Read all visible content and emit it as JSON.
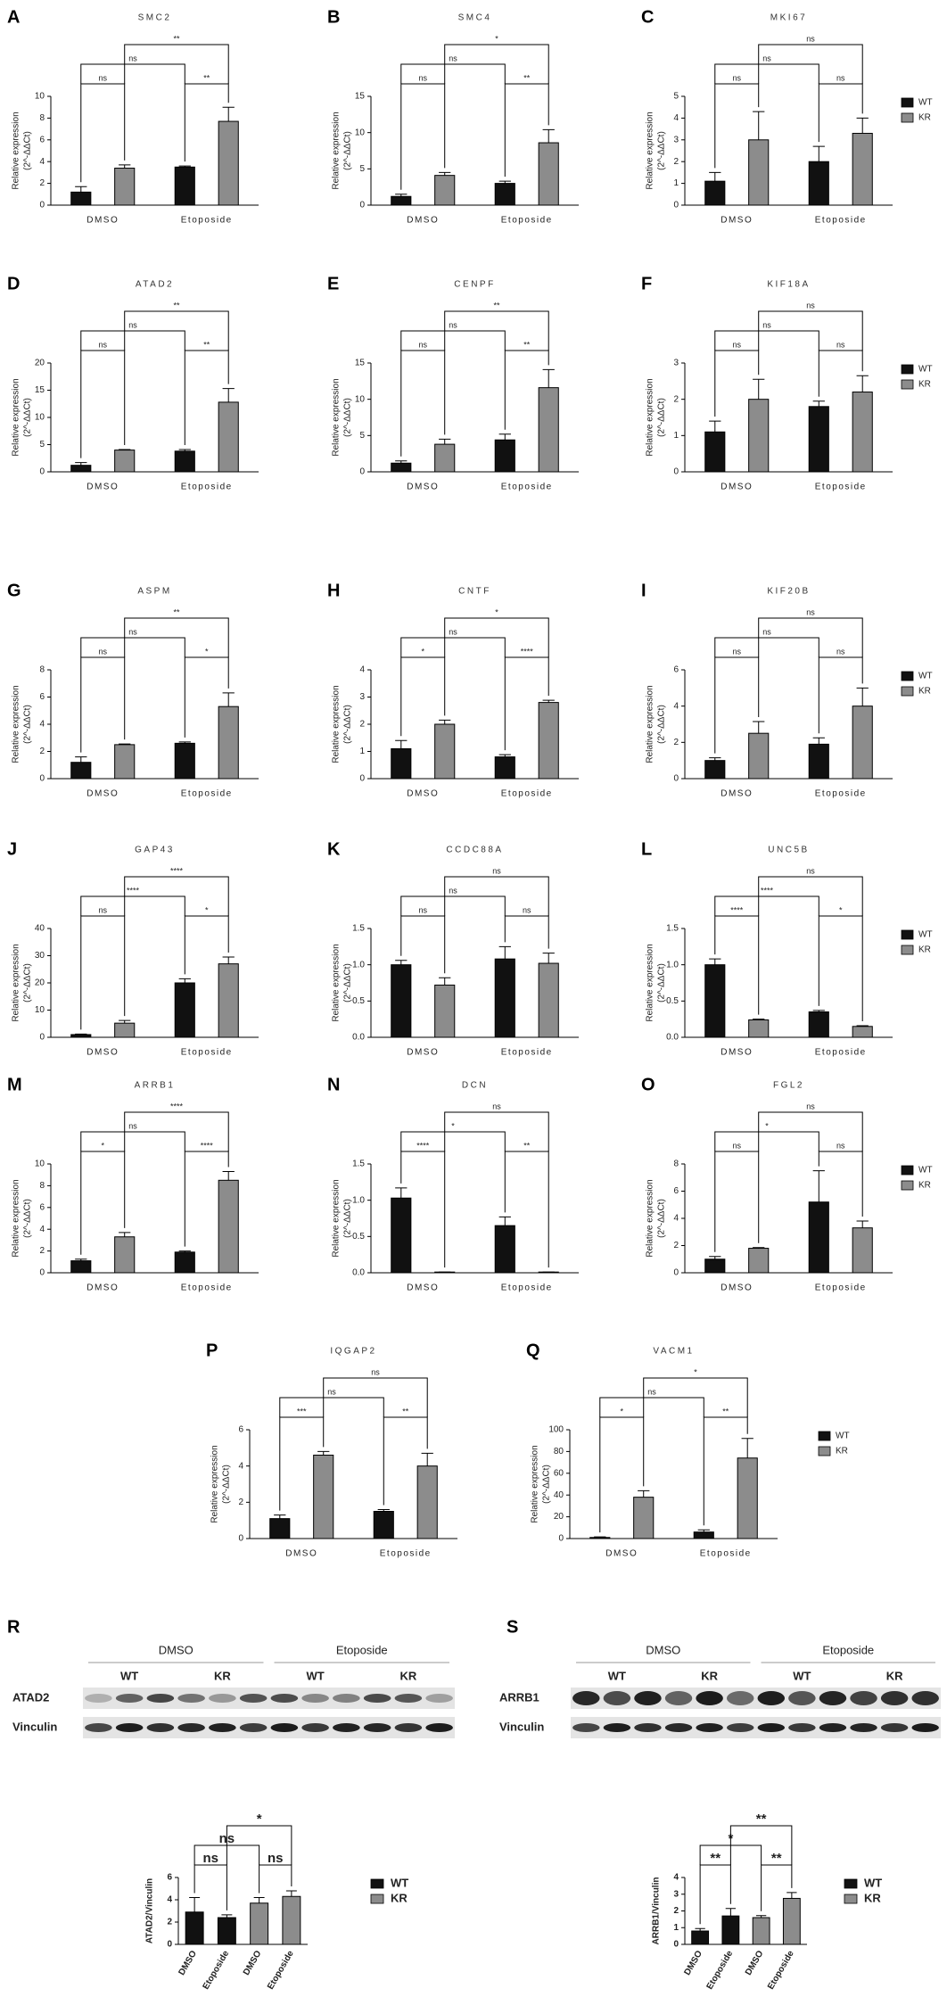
{
  "chart_data": [
    {
      "panel": "A",
      "type": "bar",
      "title": "SMC2",
      "ylabel": "Relative expression",
      "ylabel_unit": "(2^-ΔΔCt)",
      "categories": [
        "DMSO",
        "Etoposide"
      ],
      "series": [
        {
          "name": "WT",
          "color": "#111111",
          "values": [
            1.2,
            3.5
          ],
          "errors": [
            0.5,
            0.1
          ]
        },
        {
          "name": "KR",
          "color": "#8c8c8c",
          "values": [
            3.4,
            7.7
          ],
          "errors": [
            0.3,
            1.3
          ]
        }
      ],
      "ylim": [
        0,
        10
      ],
      "yticks": [
        0,
        2,
        4,
        6,
        8,
        10
      ],
      "significance": [
        "ns",
        "**",
        "ns",
        "**"
      ]
    },
    {
      "panel": "B",
      "type": "bar",
      "title": "SMC4",
      "ylabel": "Relative expression",
      "ylabel_unit": "(2^-ΔΔCt)",
      "categories": [
        "DMSO",
        "Etoposide"
      ],
      "series": [
        {
          "name": "WT",
          "color": "#111111",
          "values": [
            1.2,
            3.0
          ],
          "errors": [
            0.3,
            0.3
          ]
        },
        {
          "name": "KR",
          "color": "#8c8c8c",
          "values": [
            4.1,
            8.6
          ],
          "errors": [
            0.4,
            1.8
          ]
        }
      ],
      "ylim": [
        0,
        15
      ],
      "yticks": [
        0,
        5,
        10,
        15
      ],
      "significance": [
        "ns",
        "**",
        "ns",
        "*"
      ]
    },
    {
      "panel": "C",
      "type": "bar",
      "title": "MKI67",
      "ylabel": "Relative expression",
      "ylabel_unit": "(2^-ΔΔCt)",
      "categories": [
        "DMSO",
        "Etoposide"
      ],
      "series": [
        {
          "name": "WT",
          "color": "#111111",
          "values": [
            1.1,
            2.0
          ],
          "errors": [
            0.4,
            0.7
          ]
        },
        {
          "name": "KR",
          "color": "#8c8c8c",
          "values": [
            3.0,
            3.3
          ],
          "errors": [
            1.3,
            0.7
          ]
        }
      ],
      "ylim": [
        0,
        5
      ],
      "yticks": [
        0,
        1,
        2,
        3,
        4,
        5
      ],
      "significance": [
        "ns",
        "ns",
        "ns",
        "ns"
      ],
      "legend": "right"
    },
    {
      "panel": "D",
      "type": "bar",
      "title": "ATAD2",
      "ylabel": "Relative expression",
      "ylabel_unit": "(2^-ΔΔCt)",
      "categories": [
        "DMSO",
        "Etoposide"
      ],
      "series": [
        {
          "name": "WT",
          "color": "#111111",
          "values": [
            1.2,
            3.8
          ],
          "errors": [
            0.5,
            0.3
          ]
        },
        {
          "name": "KR",
          "color": "#8c8c8c",
          "values": [
            4.0,
            12.8
          ],
          "errors": [
            0.1,
            2.5
          ]
        }
      ],
      "ylim": [
        0,
        20
      ],
      "yticks": [
        0,
        5,
        10,
        15,
        20
      ],
      "significance": [
        "ns",
        "**",
        "ns",
        "**"
      ]
    },
    {
      "panel": "E",
      "type": "bar",
      "title": "CENPF",
      "ylabel": "Relative expression",
      "ylabel_unit": "(2^-ΔΔCt)",
      "categories": [
        "DMSO",
        "Etoposide"
      ],
      "series": [
        {
          "name": "WT",
          "color": "#111111",
          "values": [
            1.2,
            4.4
          ],
          "errors": [
            0.3,
            0.8
          ]
        },
        {
          "name": "KR",
          "color": "#8c8c8c",
          "values": [
            3.8,
            11.6
          ],
          "errors": [
            0.7,
            2.5
          ]
        }
      ],
      "ylim": [
        0,
        15
      ],
      "yticks": [
        0,
        5,
        10,
        15
      ],
      "significance": [
        "ns",
        "**",
        "ns",
        "**"
      ]
    },
    {
      "panel": "F",
      "type": "bar",
      "title": "KIF18A",
      "ylabel": "Relative expression",
      "ylabel_unit": "(2^-ΔΔCt)",
      "categories": [
        "DMSO",
        "Etoposide"
      ],
      "series": [
        {
          "name": "WT",
          "color": "#111111",
          "values": [
            1.1,
            1.8
          ],
          "errors": [
            0.3,
            0.15
          ]
        },
        {
          "name": "KR",
          "color": "#8c8c8c",
          "values": [
            2.0,
            2.2
          ],
          "errors": [
            0.55,
            0.45
          ]
        }
      ],
      "ylim": [
        0,
        3
      ],
      "yticks": [
        0,
        1,
        2,
        3
      ],
      "significance": [
        "ns",
        "ns",
        "ns",
        "ns"
      ],
      "legend": "right"
    },
    {
      "panel": "G",
      "type": "bar",
      "title": "ASPM",
      "ylabel": "Relative expression",
      "ylabel_unit": "(2^-ΔΔCt)",
      "categories": [
        "DMSO",
        "Etoposide"
      ],
      "series": [
        {
          "name": "WT",
          "color": "#111111",
          "values": [
            1.2,
            2.6
          ],
          "errors": [
            0.4,
            0.1
          ]
        },
        {
          "name": "KR",
          "color": "#8c8c8c",
          "values": [
            2.5,
            5.3
          ],
          "errors": [
            0.05,
            1.0
          ]
        }
      ],
      "ylim": [
        0,
        8
      ],
      "yticks": [
        0,
        2,
        4,
        6,
        8
      ],
      "significance": [
        "ns",
        "*",
        "ns",
        "**"
      ]
    },
    {
      "panel": "H",
      "type": "bar",
      "title": "CNTF",
      "ylabel": "Relative expression",
      "ylabel_unit": "(2^-ΔΔCt)",
      "categories": [
        "DMSO",
        "Etoposide"
      ],
      "series": [
        {
          "name": "WT",
          "color": "#111111",
          "values": [
            1.1,
            0.8
          ],
          "errors": [
            0.3,
            0.08
          ]
        },
        {
          "name": "KR",
          "color": "#8c8c8c",
          "values": [
            2.0,
            2.8
          ],
          "errors": [
            0.15,
            0.08
          ]
        }
      ],
      "ylim": [
        0,
        4
      ],
      "yticks": [
        0,
        1,
        2,
        3,
        4
      ],
      "significance": [
        "*",
        "****",
        "ns",
        "*"
      ]
    },
    {
      "panel": "I",
      "type": "bar",
      "title": "KIF20B",
      "ylabel": "Relative expression",
      "ylabel_unit": "(2^-ΔΔCt)",
      "categories": [
        "DMSO",
        "Etoposide"
      ],
      "series": [
        {
          "name": "WT",
          "color": "#111111",
          "values": [
            1.0,
            1.9
          ],
          "errors": [
            0.15,
            0.35
          ]
        },
        {
          "name": "KR",
          "color": "#8c8c8c",
          "values": [
            2.5,
            4.0
          ],
          "errors": [
            0.65,
            1.0
          ]
        }
      ],
      "ylim": [
        0,
        6
      ],
      "yticks": [
        0,
        2,
        4,
        6
      ],
      "significance": [
        "ns",
        "ns",
        "ns",
        "ns"
      ],
      "legend": "right"
    },
    {
      "panel": "J",
      "type": "bar",
      "title": "GAP43",
      "ylabel": "Relative expression",
      "ylabel_unit": "(2^-ΔΔCt)",
      "categories": [
        "DMSO",
        "Etoposide"
      ],
      "series": [
        {
          "name": "WT",
          "color": "#111111",
          "values": [
            1.0,
            20
          ],
          "errors": [
            0.2,
            1.5
          ]
        },
        {
          "name": "KR",
          "color": "#8c8c8c",
          "values": [
            5.2,
            27
          ],
          "errors": [
            1,
            2.5
          ]
        }
      ],
      "ylim": [
        0,
        40
      ],
      "yticks": [
        0,
        10,
        20,
        30,
        40
      ],
      "significance": [
        "ns",
        "*",
        "****",
        "****"
      ]
    },
    {
      "panel": "K",
      "type": "bar",
      "title": "CCDC88A",
      "ylabel": "Relative expression",
      "ylabel_unit": "(2^-ΔΔCt)",
      "categories": [
        "DMSO",
        "Etoposide"
      ],
      "series": [
        {
          "name": "WT",
          "color": "#111111",
          "values": [
            1.0,
            1.08
          ],
          "errors": [
            0.06,
            0.17
          ]
        },
        {
          "name": "KR",
          "color": "#8c8c8c",
          "values": [
            0.72,
            1.02
          ],
          "errors": [
            0.1,
            0.14
          ]
        }
      ],
      "ylim": [
        0,
        1.5
      ],
      "yticks": [
        {
          "value": 0,
          "label": "0.0"
        },
        0.5,
        {
          "value": 1,
          "label": "1.0"
        },
        1.5
      ],
      "significance": [
        "ns",
        "ns",
        "ns",
        "ns"
      ]
    },
    {
      "panel": "L",
      "type": "bar",
      "title": "UNC5B",
      "ylabel": "Relative expression",
      "ylabel_unit": "(2^-ΔΔCt)",
      "categories": [
        "DMSO",
        "Etoposide"
      ],
      "series": [
        {
          "name": "WT",
          "color": "#111111",
          "values": [
            1.0,
            0.35
          ],
          "errors": [
            0.08,
            0.02
          ]
        },
        {
          "name": "KR",
          "color": "#8c8c8c",
          "values": [
            0.24,
            0.15
          ],
          "errors": [
            0.01,
            0.01
          ]
        }
      ],
      "ylim": [
        0,
        1.5
      ],
      "yticks": [
        {
          "value": 0,
          "label": "0.0"
        },
        0.5,
        {
          "value": 1,
          "label": "1.0"
        },
        1.5
      ],
      "significance": [
        "****",
        "*",
        "****",
        "ns"
      ],
      "legend": "right"
    },
    {
      "panel": "M",
      "type": "bar",
      "title": "ARRB1",
      "ylabel": "Relative expression",
      "ylabel_unit": "(2^-ΔΔCt)",
      "categories": [
        "DMSO",
        "Etoposide"
      ],
      "series": [
        {
          "name": "WT",
          "color": "#111111",
          "values": [
            1.1,
            1.9
          ],
          "errors": [
            0.15,
            0.1
          ]
        },
        {
          "name": "KR",
          "color": "#8c8c8c",
          "values": [
            3.3,
            8.5
          ],
          "errors": [
            0.4,
            0.8
          ]
        }
      ],
      "ylim": [
        0,
        10
      ],
      "yticks": [
        0,
        2,
        4,
        6,
        8,
        10
      ],
      "significance": [
        "*",
        "****",
        "ns",
        "****"
      ]
    },
    {
      "panel": "N",
      "type": "bar",
      "title": "DCN",
      "ylabel": "Relative expression",
      "ylabel_unit": "(2^-ΔΔCt)",
      "categories": [
        "DMSO",
        "Etoposide"
      ],
      "series": [
        {
          "name": "WT",
          "color": "#111111",
          "values": [
            1.03,
            0.65
          ],
          "errors": [
            0.14,
            0.12
          ]
        },
        {
          "name": "KR",
          "color": "#8c8c8c",
          "values": [
            0.01,
            0.01
          ],
          "errors": [
            0,
            0
          ]
        }
      ],
      "ylim": [
        0,
        1.5
      ],
      "yticks": [
        {
          "value": 0,
          "label": "0.0"
        },
        0.5,
        {
          "value": 1,
          "label": "1.0"
        },
        1.5
      ],
      "significance": [
        "****",
        "**",
        "*",
        "ns"
      ]
    },
    {
      "panel": "O",
      "type": "bar",
      "title": "FGL2",
      "ylabel": "Relative expression",
      "ylabel_unit": "(2^-ΔΔCt)",
      "categories": [
        "DMSO",
        "Etoposide"
      ],
      "series": [
        {
          "name": "WT",
          "color": "#111111",
          "values": [
            1.0,
            5.2
          ],
          "errors": [
            0.2,
            2.3
          ]
        },
        {
          "name": "KR",
          "color": "#8c8c8c",
          "values": [
            1.8,
            3.3
          ],
          "errors": [
            0.05,
            0.5
          ]
        }
      ],
      "ylim": [
        0,
        8
      ],
      "yticks": [
        0,
        2,
        4,
        6,
        8
      ],
      "significance": [
        "ns",
        "ns",
        "*",
        "ns"
      ],
      "legend": "right"
    },
    {
      "panel": "P",
      "type": "bar",
      "title": "IQGAP2",
      "ylabel": "Relative expression",
      "ylabel_unit": "(2^-ΔΔCt)",
      "categories": [
        "DMSO",
        "Etoposide"
      ],
      "series": [
        {
          "name": "WT",
          "color": "#111111",
          "values": [
            1.1,
            1.5
          ],
          "errors": [
            0.2,
            0.1
          ]
        },
        {
          "name": "KR",
          "color": "#8c8c8c",
          "values": [
            4.6,
            4.0
          ],
          "errors": [
            0.2,
            0.7
          ]
        }
      ],
      "ylim": [
        0,
        6
      ],
      "yticks": [
        0,
        2,
        4,
        6
      ],
      "significance": [
        "***",
        "**",
        "ns",
        "ns"
      ]
    },
    {
      "panel": "Q",
      "type": "bar",
      "title": "VACM1",
      "ylabel": "Relative expression",
      "ylabel_unit": "(2^-ΔΔCt)",
      "categories": [
        "DMSO",
        "Etoposide"
      ],
      "series": [
        {
          "name": "WT",
          "color": "#111111",
          "values": [
            1,
            6
          ],
          "errors": [
            0.5,
            2
          ]
        },
        {
          "name": "KR",
          "color": "#8c8c8c",
          "values": [
            38,
            74
          ],
          "errors": [
            6,
            18
          ]
        }
      ],
      "ylim": [
        0,
        100
      ],
      "yticks": [
        0,
        20,
        40,
        60,
        80,
        100
      ],
      "significance": [
        "*",
        "**",
        "ns",
        "*"
      ],
      "legend": "right"
    },
    {
      "panel": "R",
      "type": "bar",
      "ylabel": "ATAD2/Vinculin",
      "categories": [
        "DMSO",
        "Etoposide",
        "DMSO",
        "Etoposide"
      ],
      "series": [
        {
          "name": "WT",
          "color": "#111111",
          "values": [
            2.9,
            2.4,
            null,
            null
          ],
          "errors": [
            1.3,
            0.25,
            null,
            null
          ]
        },
        {
          "name": "KR",
          "color": "#8c8c8c",
          "values": [
            null,
            null,
            3.7,
            4.3
          ],
          "errors": [
            null,
            null,
            0.5,
            0.5
          ]
        }
      ],
      "ylim": [
        0,
        6
      ],
      "yticks": [
        0,
        2,
        4,
        6
      ],
      "significance": [
        "ns",
        "ns",
        "ns",
        "*"
      ],
      "legend": "right"
    },
    {
      "panel": "S",
      "type": "bar",
      "ylabel": "ARRB1/Vinculin",
      "categories": [
        "DMSO",
        "Etoposide",
        "DMSO",
        "Etoposide"
      ],
      "series": [
        {
          "name": "WT",
          "color": "#111111",
          "values": [
            0.8,
            1.7,
            null,
            null
          ],
          "errors": [
            0.15,
            0.45,
            null,
            null
          ]
        },
        {
          "name": "KR",
          "color": "#8c8c8c",
          "values": [
            null,
            null,
            1.6,
            2.75
          ],
          "errors": [
            null,
            null,
            0.12,
            0.35
          ]
        }
      ],
      "ylim": [
        0,
        4
      ],
      "yticks": [
        0,
        1,
        2,
        3,
        4
      ],
      "significance": [
        "**",
        "**",
        "*",
        "**"
      ],
      "legend": "right"
    }
  ],
  "blots": [
    {
      "groups": [
        "DMSO",
        "Etoposide"
      ],
      "lanes": [
        "WT",
        "KR",
        "WT",
        "KR"
      ],
      "rows": [
        "ATAD2",
        "Vinculin"
      ]
    },
    {
      "groups": [
        "DMSO",
        "Etoposide"
      ],
      "lanes": [
        "WT",
        "KR",
        "WT",
        "KR"
      ],
      "rows": [
        "ARRB1",
        "Vinculin"
      ]
    }
  ]
}
